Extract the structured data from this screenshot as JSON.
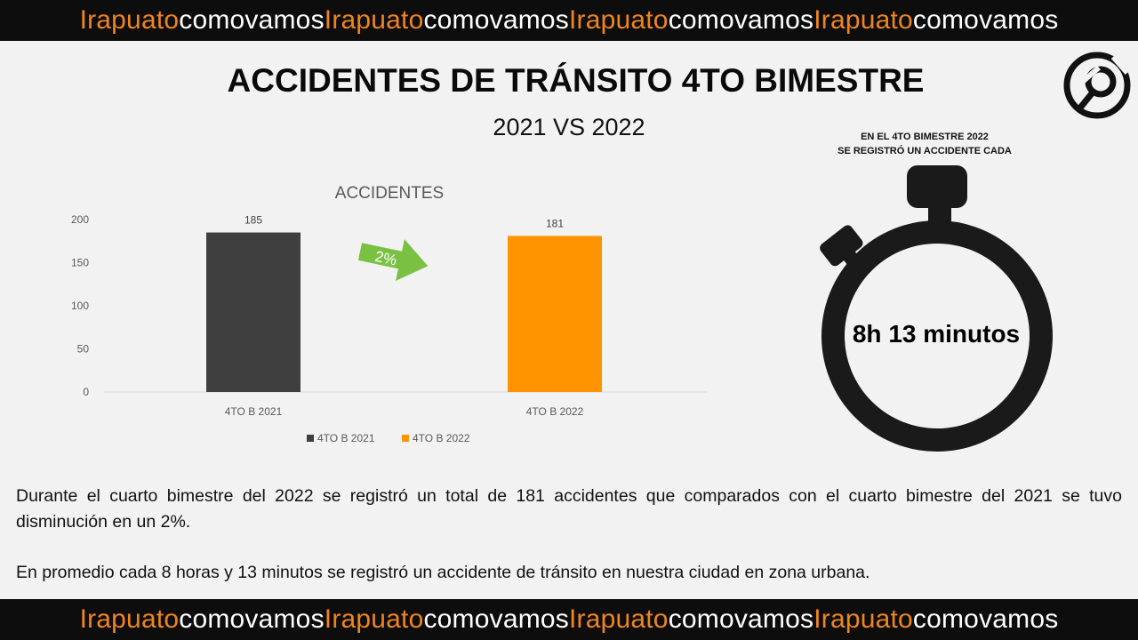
{
  "banner": {
    "segments": [
      {
        "text": "Irapuato",
        "color": "#f0841e"
      },
      {
        "text": "comovamos",
        "color": "#ffffff"
      },
      {
        "text": "Irapuato",
        "color": "#f0841e"
      },
      {
        "text": "comovamos",
        "color": "#ffffff"
      },
      {
        "text": "Irapuato",
        "color": "#f0841e"
      },
      {
        "text": "comovamos",
        "color": "#ffffff"
      },
      {
        "text": "Irapuato",
        "color": "#f0841e"
      },
      {
        "text": "comovamos",
        "color": "#ffffff"
      }
    ]
  },
  "header": {
    "title": "ACCIDENTES DE TRÁNSITO 4TO BIMESTRE",
    "subtitle": "2021 VS 2022"
  },
  "logo": {
    "icon": "irapuato-como-vamos-logo"
  },
  "stopwatch": {
    "caption_line1": "EN EL 4TO BIMESTRE 2022",
    "caption_line2": "SE REGISTRÓ UN ACCIDENTE CADA",
    "time": "8h 13 minutos",
    "icon": "stopwatch-icon"
  },
  "chart_data": {
    "type": "bar",
    "title": "ACCIDENTES",
    "categories": [
      "4TO B 2021",
      "4TO B 2022"
    ],
    "values": [
      185,
      181
    ],
    "data_labels": [
      "185",
      "181"
    ],
    "colors": [
      "#3f3f3f",
      "#ff9300"
    ],
    "ylim": [
      0,
      200
    ],
    "yticks": [
      0,
      50,
      100,
      150,
      200
    ],
    "legend": [
      "4TO B 2021",
      "4TO B 2022"
    ],
    "legend_position": "bottom",
    "grid": false,
    "annotation": {
      "text": "2%",
      "icon": "green-arrow-icon",
      "color": "#7ac143"
    }
  },
  "paragraphs": {
    "p1": "Durante el cuarto bimestre del 2022 se registró un total de 181 accidentes que comparados con el cuarto bimestre del 2021 se tuvo disminución en un 2%.",
    "p2": "En promedio cada 8 horas y 13 minutos se registró un accidente de tránsito en nuestra ciudad en zona urbana."
  }
}
